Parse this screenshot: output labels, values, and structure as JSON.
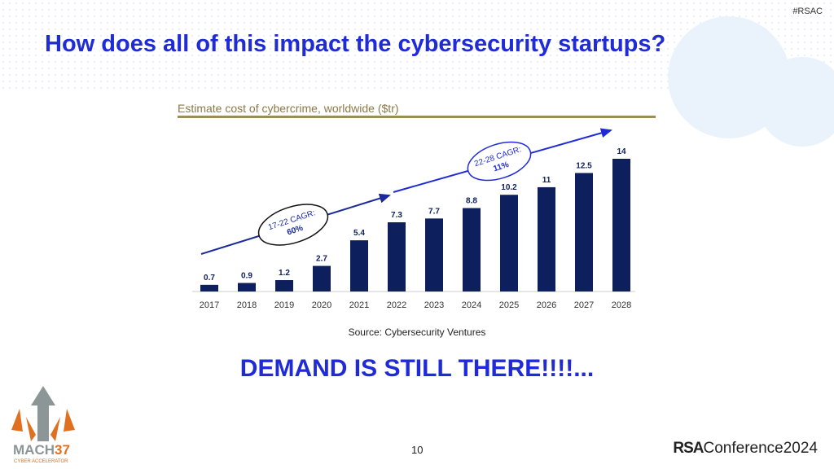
{
  "slide": {
    "hashtag": "#RSAC",
    "title": "How does all of this impact the cybersecurity startups?",
    "source": "Source: Cybersecurity Ventures",
    "callout": "DEMAND IS STILL THERE!!!!...",
    "page_number": "10",
    "footer_brand": "RSAConference2024",
    "logo_text": "MACH37",
    "logo_subtext": "CYBER ACCELERATOR"
  },
  "colors": {
    "bar": "#0d1f5c",
    "title": "#1f2bd6",
    "arrow": "#1f2bd6",
    "rule": "#9b8d58"
  },
  "chart_data": {
    "type": "bar",
    "title": "Estimate cost of cybercrime, worldwide ($tr)",
    "categories": [
      "2017",
      "2018",
      "2019",
      "2020",
      "2021",
      "2022",
      "2023",
      "2024",
      "2025",
      "2026",
      "2027",
      "2028"
    ],
    "values": [
      0.7,
      0.9,
      1.2,
      2.7,
      5.4,
      7.3,
      7.7,
      8.8,
      10.2,
      11,
      12.5,
      14
    ],
    "value_labels": [
      "0.7",
      "0.9",
      "1.2",
      "2.7",
      "5.4",
      "7.3",
      "7.7",
      "8.8",
      "10.2",
      "11",
      "12.5",
      "14"
    ],
    "ylim": [
      0,
      14
    ],
    "grid": false,
    "annotations": [
      {
        "line1": "17-22 CAGR:",
        "line2": "60%"
      },
      {
        "line1": "22-28 CAGR:",
        "line2": "11%"
      }
    ]
  }
}
